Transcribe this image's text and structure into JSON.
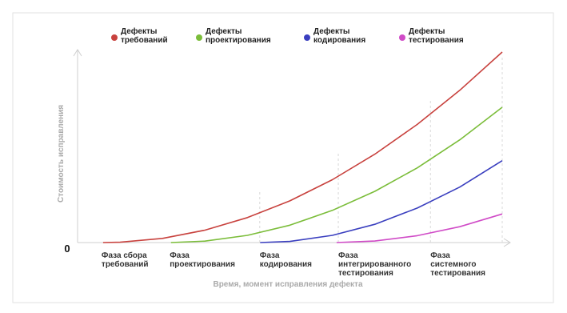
{
  "chart_data": {
    "type": "line",
    "xlabel": "Время, момент исправления дефекта",
    "ylabel": "Стоимость исправления",
    "xlim": [
      0,
      100
    ],
    "ylim": [
      0,
      100
    ],
    "yticks": [
      0
    ],
    "xticks": [
      {
        "value": 6.2,
        "label": "Фаза сбора\nтребований"
      },
      {
        "value": 21.7,
        "label": "Фаза\nпроектирования"
      },
      {
        "value": 42.9,
        "label": "Фаза\nкодирования"
      },
      {
        "value": 61.4,
        "label": "Фаза\nинтегрированного\nтестирования"
      },
      {
        "value": 83.1,
        "label": "Фаза\nсистемного\nтестирования"
      }
    ],
    "series": [
      {
        "name": "Дефекты\nтребований",
        "color": "#c8423e",
        "x": [
          6,
          10,
          20,
          30,
          40,
          50,
          60,
          70,
          80,
          90,
          100
        ],
        "values": [
          0,
          0.18,
          2.2,
          6.5,
          13.1,
          21.9,
          33,
          46.4,
          62,
          79.9,
          100
        ]
      },
      {
        "name": "Дефекты\nпроектирования",
        "color": "#7bbd3a",
        "x": [
          22,
          30,
          40,
          50,
          60,
          70,
          80,
          90,
          100
        ],
        "values": [
          0,
          0.75,
          3.8,
          9.1,
          16.9,
          26.9,
          39.2,
          53.9,
          71
        ]
      },
      {
        "name": "Дефекты\nкодирования",
        "color": "#3a3fbf",
        "x": [
          43,
          50,
          60,
          70,
          80,
          90,
          100
        ],
        "values": [
          0,
          0.6,
          3.8,
          9.6,
          18.1,
          29.1,
          43
        ]
      },
      {
        "name": "Дефекты\nтестирования",
        "color": "#d04bc7",
        "x": [
          61,
          70,
          80,
          90,
          100
        ],
        "values": [
          0,
          0.8,
          3.6,
          8.3,
          15
        ]
      }
    ]
  }
}
